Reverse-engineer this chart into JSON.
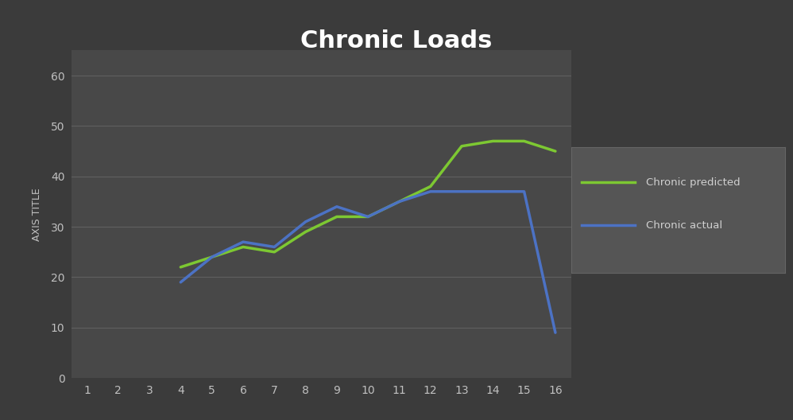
{
  "title": "Chronic Loads",
  "ylabel": "AXIS TITLE",
  "xlabel": "",
  "background_color": "#3b3b3b",
  "plot_bg_color": "#484848",
  "grid_color": "#606060",
  "title_color": "#ffffff",
  "label_color": "#c0c0c0",
  "tick_color": "#c0c0c0",
  "x_ticks": [
    1,
    2,
    3,
    4,
    5,
    6,
    7,
    8,
    9,
    10,
    11,
    12,
    13,
    14,
    15,
    16
  ],
  "ylim": [
    0,
    65
  ],
  "y_ticks": [
    0,
    10,
    20,
    30,
    40,
    50,
    60
  ],
  "chronic_predicted_x": [
    4,
    5,
    6,
    7,
    8,
    9,
    10,
    11,
    12,
    13,
    14,
    15,
    16
  ],
  "chronic_predicted_y": [
    22,
    24,
    26,
    25,
    29,
    32,
    32,
    35,
    38,
    46,
    47,
    47,
    45
  ],
  "chronic_actual_x": [
    4,
    5,
    6,
    7,
    8,
    9,
    10,
    11,
    12,
    13,
    14,
    15,
    16
  ],
  "chronic_actual_y": [
    19,
    24,
    27,
    26,
    31,
    34,
    32,
    35,
    37,
    37,
    37,
    37,
    9
  ],
  "predicted_color": "#7dc832",
  "actual_color": "#4c72c4",
  "line_width": 2.5,
  "legend_bg_color": "#555555",
  "legend_edge_color": "#666666",
  "legend_text_color": "#d0d0d0",
  "title_fontsize": 22,
  "axis_label_fontsize": 9,
  "tick_fontsize": 10
}
